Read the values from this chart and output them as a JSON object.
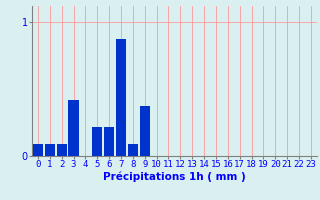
{
  "values": [
    0.09,
    0.09,
    0.09,
    0.42,
    0.0,
    0.22,
    0.22,
    0.87,
    0.09,
    0.37,
    0.0,
    0.0,
    0.0,
    0.0,
    0.0,
    0.0,
    0.0,
    0.0,
    0.0,
    0.0,
    0.0,
    0.0,
    0.0,
    0.0
  ],
  "categories": [
    "0",
    "1",
    "2",
    "3",
    "4",
    "5",
    "6",
    "7",
    "8",
    "9",
    "10",
    "11",
    "12",
    "13",
    "14",
    "15",
    "16",
    "17",
    "18",
    "19",
    "20",
    "21",
    "22",
    "23"
  ],
  "bar_color": "#0033cc",
  "background_color": "#daf0f0",
  "grid_color": "#ff9999",
  "xlabel": "Précipitations 1h ( mm )",
  "ylim": [
    0,
    1.12
  ],
  "yticks": [
    0,
    1
  ],
  "xlabel_fontsize": 7.5,
  "tick_fontsize": 6.5
}
